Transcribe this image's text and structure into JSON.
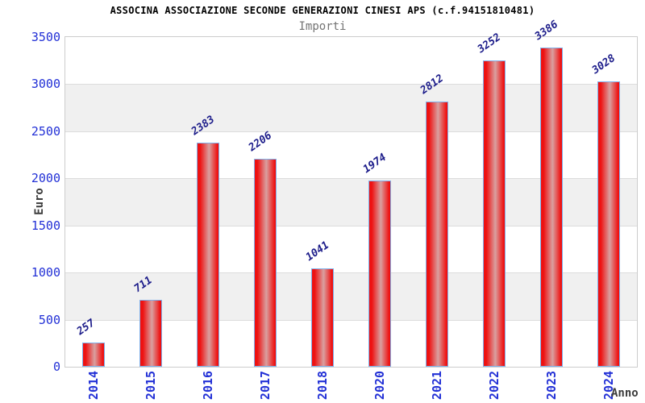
{
  "chart_data": {
    "type": "bar",
    "title": "ASSOCINA ASSOCIAZIONE SECONDE GENERAZIONI CINESI APS (c.f.94151810481)",
    "subtitle": "Importi",
    "categories": [
      "2014",
      "2015",
      "2016",
      "2017",
      "2018",
      "2020",
      "2021",
      "2022",
      "2023",
      "2024"
    ],
    "values": [
      257,
      711,
      2383,
      2206,
      1041,
      1974,
      2812,
      3252,
      3386,
      3028
    ],
    "xlabel": "Anno",
    "ylabel": "Euro",
    "ylim": [
      0,
      3500
    ],
    "yticks": [
      0,
      500,
      1000,
      1500,
      2000,
      2500,
      3000,
      3500
    ],
    "grid": "horizontal-bands-alternating",
    "legend_position": "none",
    "colors": {
      "bar_fill_edge": "#ee1111",
      "bar_fill_center": "#d9a0a0",
      "bar_border": "#7fb0ea",
      "value_label": "#1c1c8a",
      "tick_label": "#2230d6",
      "axis_label": "#3c3c3c",
      "title": "#000000",
      "subtitle": "#737373",
      "band_alt": "#f0f0f0",
      "gridline": "#dcdcdc",
      "frame_border": "#cccccc",
      "background": "#ffffff"
    }
  }
}
